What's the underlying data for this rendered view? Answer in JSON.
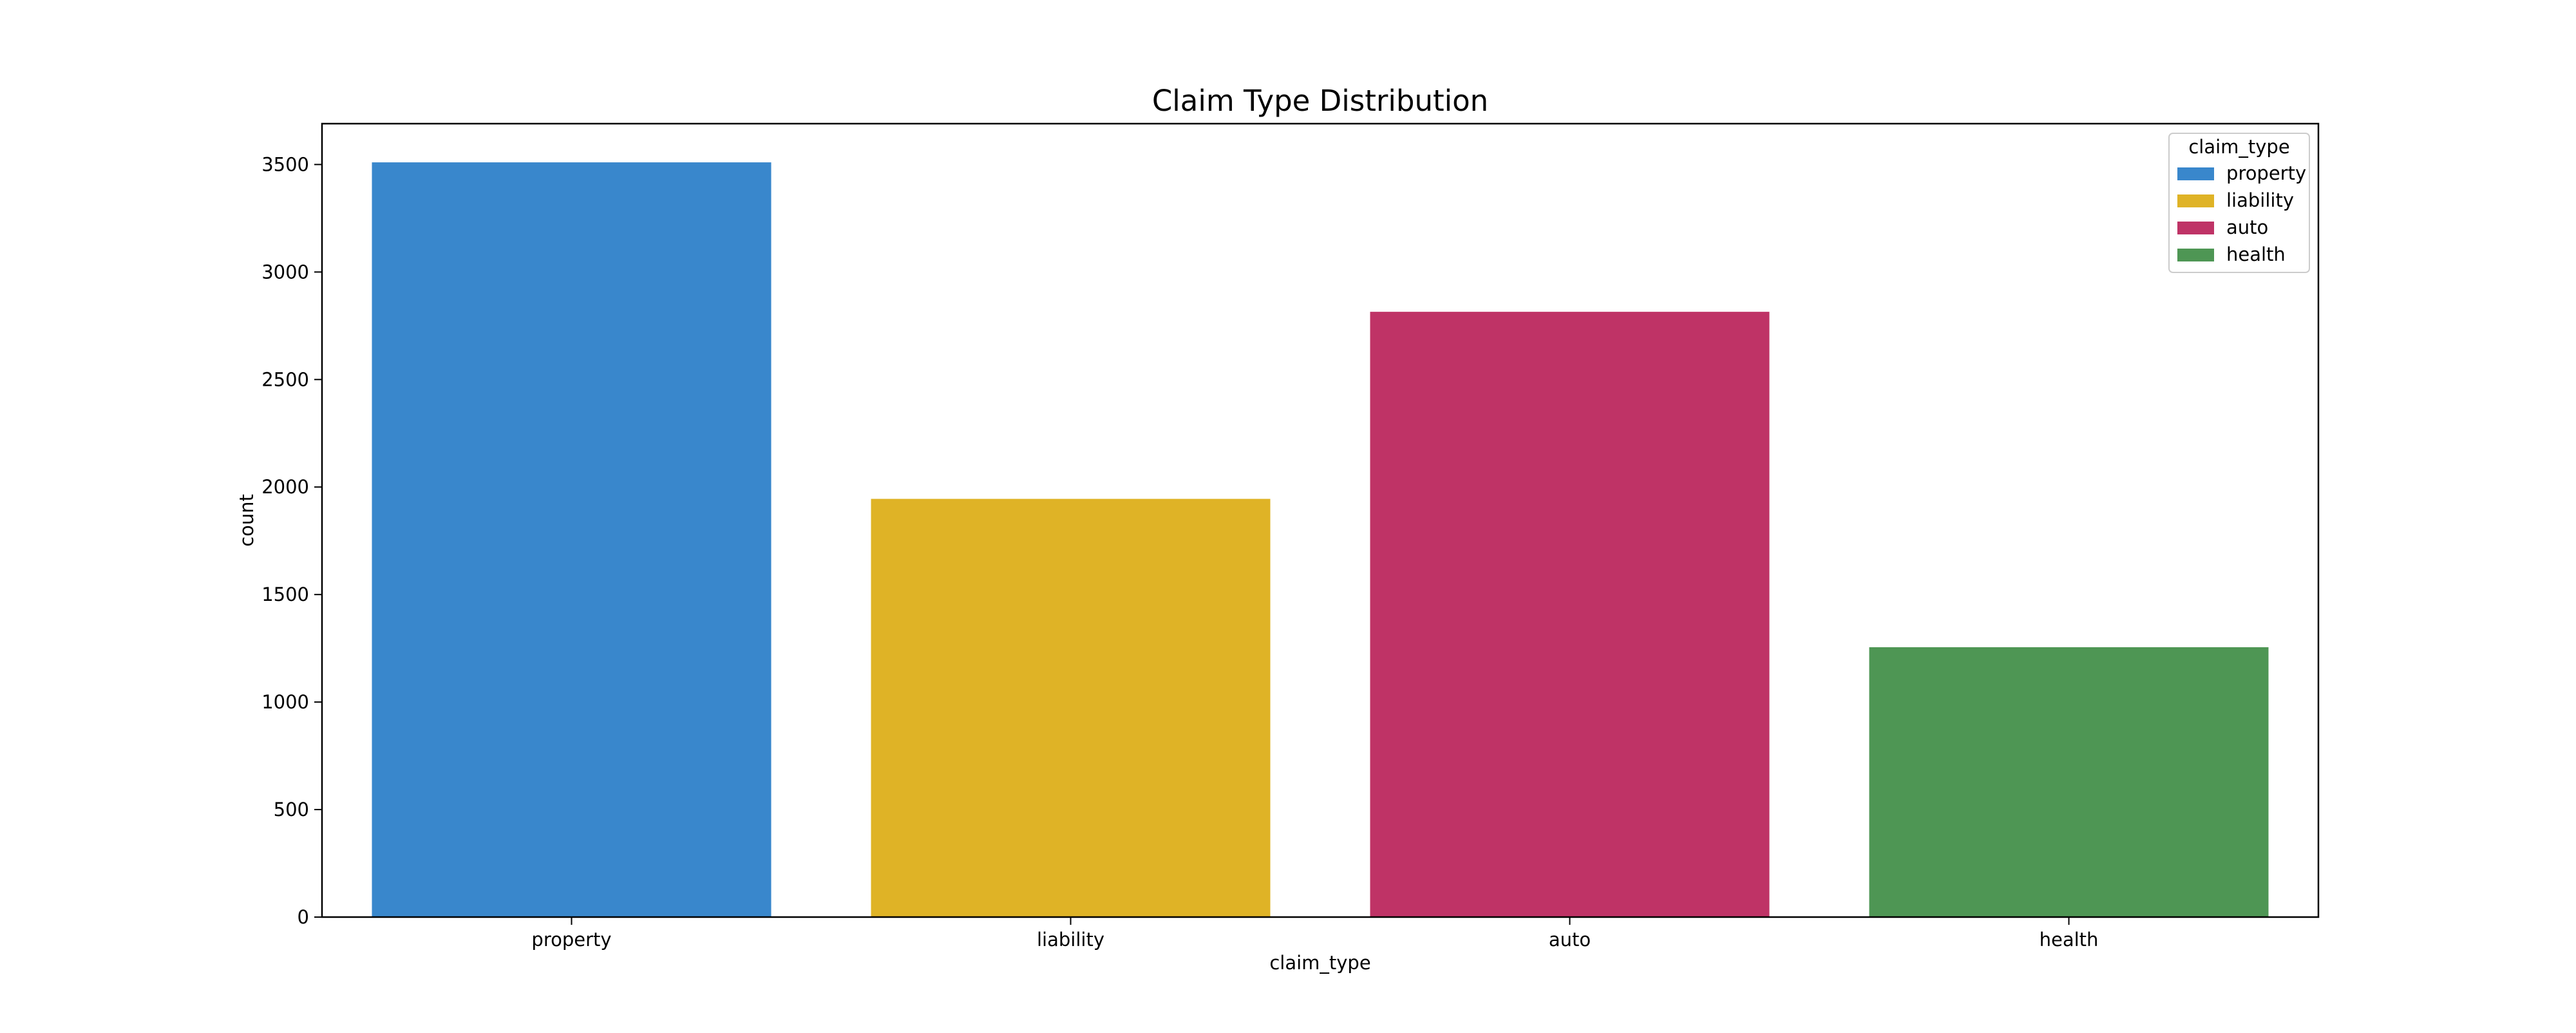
{
  "chart_data": {
    "type": "bar",
    "title": "Claim Type Distribution",
    "xlabel": "claim_type",
    "ylabel": "count",
    "categories": [
      "property",
      "liability",
      "auto",
      "health"
    ],
    "values": [
      3510,
      1945,
      2815,
      1255
    ],
    "colors": [
      "#3987cc",
      "#dfb326",
      "#bf3366",
      "#4e9654"
    ],
    "ylim": [
      0,
      3690
    ],
    "yticks": [
      0,
      500,
      1000,
      1500,
      2000,
      2500,
      3000,
      3500
    ],
    "grid": false,
    "legend": {
      "title": "claim_type",
      "placement": "upper right",
      "entries": [
        "property",
        "liability",
        "auto",
        "health"
      ]
    }
  }
}
